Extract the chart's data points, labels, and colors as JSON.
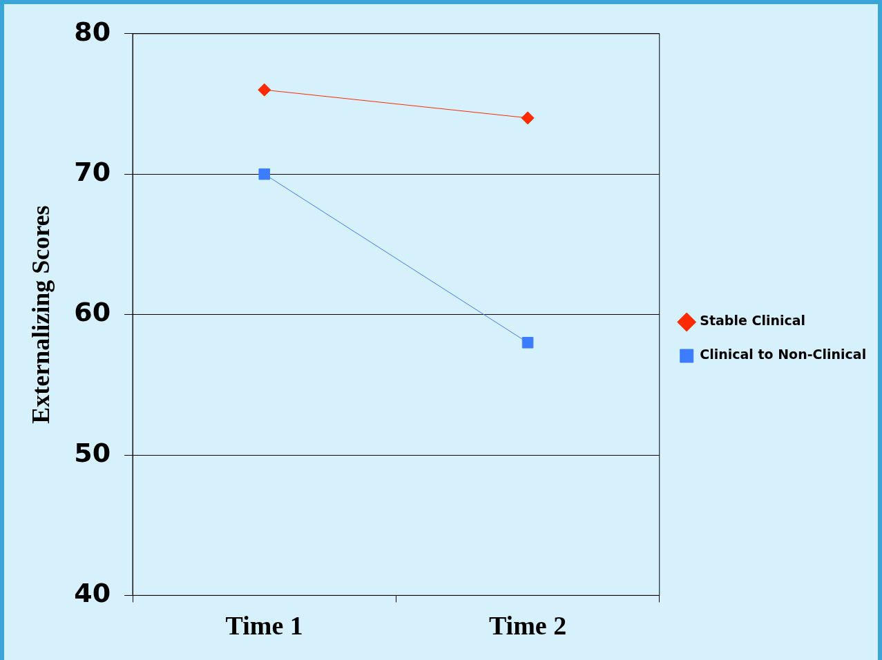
{
  "chart_data": {
    "type": "line",
    "ylabel": "Externalizing Scores",
    "categories": [
      "Time 1",
      "Time 2"
    ],
    "series": [
      {
        "name": "Stable Clinical",
        "color": "#ff2a00",
        "values": [
          76,
          74
        ],
        "marker": "diamond"
      },
      {
        "name": "Clinical to Non-Clinical",
        "color": "#3c7cff",
        "values": [
          70,
          58
        ],
        "marker": "square"
      }
    ],
    "ylim": [
      40,
      80
    ],
    "yticks": [
      40,
      50,
      60,
      70,
      80
    ],
    "grid": "y",
    "legend": "right",
    "line_style": "solid"
  }
}
